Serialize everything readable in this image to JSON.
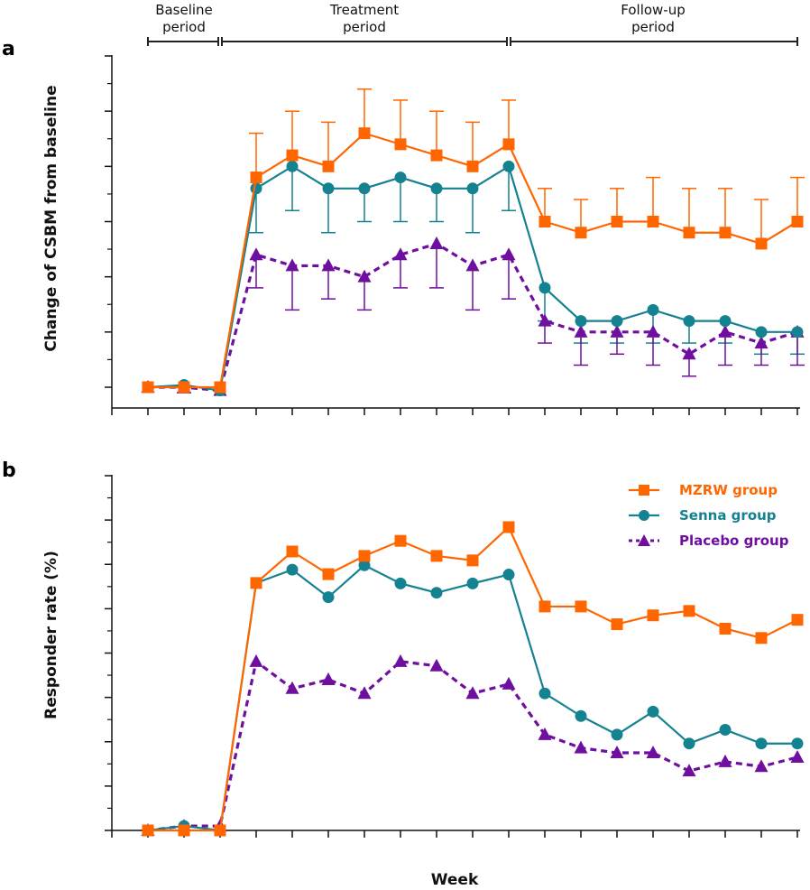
{
  "figure": {
    "periods": [
      {
        "label_line1": "Baseline",
        "label_line2": "period",
        "from_week": -2,
        "to_week": 0
      },
      {
        "label_line1": "Treatment",
        "label_line2": "period",
        "from_week": 0,
        "to_week": 8
      },
      {
        "label_line1": "Follow-up",
        "label_line2": "period",
        "from_week": 8,
        "to_week": 16
      }
    ],
    "legend": [
      {
        "name": "MZRW group",
        "color": "#ff6600",
        "marker": "square",
        "dash": "solid"
      },
      {
        "name": "Senna group",
        "color": "#148291",
        "marker": "circle",
        "dash": "solid"
      },
      {
        "name": "Placebo group",
        "color": "#6f0fa0",
        "marker": "triangle",
        "dash": "dashed"
      }
    ],
    "sig_colors": {
      "MZRW group": "#ff9a4a",
      "Senna group": "#34aac8"
    }
  },
  "chart_data": [
    {
      "panel": "a",
      "type": "line",
      "title": "",
      "xlabel": "",
      "ylabel": "Change of CSBM from  baseline",
      "x": [
        -2,
        -1,
        0,
        1,
        2,
        3,
        4,
        5,
        6,
        7,
        8,
        9,
        10,
        11,
        12,
        13,
        14,
        15,
        16
      ],
      "xlim": [
        -3,
        16
      ],
      "ylim": [
        -0.2,
        3.0
      ],
      "xticks": [
        "-3",
        "-2",
        "-1",
        "0",
        "1",
        "2",
        "3",
        "4",
        "5",
        "6",
        "7",
        "8",
        "9",
        "10",
        "11",
        "12",
        "13",
        "14",
        "15",
        "16"
      ],
      "yticks": [
        "0.0",
        "0.5",
        "1.0",
        "1.5",
        "2.0",
        "2.5",
        "3.0"
      ],
      "ytick_values": [
        0,
        0.5,
        1.0,
        1.5,
        2.0,
        2.5,
        3.0
      ],
      "grid": false,
      "series": [
        {
          "name": "MZRW group",
          "values": [
            0,
            0,
            0,
            1.9,
            2.1,
            2.0,
            2.3,
            2.2,
            2.1,
            2.0,
            2.2,
            1.5,
            1.4,
            1.5,
            1.5,
            1.4,
            1.4,
            1.3,
            1.5
          ],
          "error_upper": [
            null,
            null,
            null,
            2.3,
            2.5,
            2.4,
            2.7,
            2.6,
            2.5,
            2.4,
            2.6,
            1.8,
            1.7,
            1.8,
            1.9,
            1.8,
            1.8,
            1.7,
            1.9
          ],
          "error_lower": [
            null,
            null,
            null,
            null,
            null,
            null,
            null,
            null,
            null,
            null,
            null,
            null,
            null,
            null,
            null,
            null,
            null,
            null,
            null
          ],
          "sig_above": [
            "",
            "",
            "",
            "**",
            "**",
            "**",
            "**",
            "**",
            "**",
            "**",
            "**",
            "**",
            "**",
            "**",
            "**",
            "**",
            "**",
            "**",
            "**"
          ],
          "sig_below": [
            "",
            "",
            "",
            "",
            "",
            "",
            "",
            "",
            "",
            "",
            "",
            "",
            "",
            "",
            "",
            "",
            "",
            "",
            ""
          ]
        },
        {
          "name": "Senna group",
          "values": [
            0,
            0.02,
            -0.03,
            1.8,
            2.0,
            1.8,
            1.8,
            1.9,
            1.8,
            1.8,
            2.0,
            0.9,
            0.6,
            0.6,
            0.7,
            0.6,
            0.6,
            0.5,
            0.5
          ],
          "error_upper": [
            null,
            null,
            null,
            null,
            null,
            null,
            null,
            null,
            null,
            null,
            null,
            null,
            null,
            null,
            null,
            null,
            null,
            null,
            null
          ],
          "error_lower": [
            null,
            null,
            null,
            1.4,
            1.6,
            1.4,
            1.5,
            1.5,
            1.5,
            1.4,
            1.6,
            0.6,
            0.4,
            0.4,
            0.4,
            0.4,
            0.4,
            0.3,
            0.3
          ],
          "sig_above": [
            "",
            "",
            "",
            "",
            "",
            "",
            "",
            "",
            "",
            "",
            "",
            "",
            "",
            "",
            "",
            "",
            "",
            "",
            ""
          ],
          "sig_below": [
            "",
            "",
            "",
            "",
            "**",
            "*",
            "*",
            "",
            "",
            "*",
            "*",
            "",
            "",
            "",
            "",
            "",
            "",
            "",
            ""
          ]
        },
        {
          "name": "Placebo group",
          "values": [
            0,
            0,
            -0.03,
            1.2,
            1.1,
            1.1,
            1.0,
            1.2,
            1.3,
            1.1,
            1.2,
            0.6,
            0.5,
            0.5,
            0.5,
            0.3,
            0.5,
            0.4,
            0.5
          ],
          "error_upper": [
            null,
            null,
            null,
            null,
            null,
            null,
            null,
            null,
            null,
            null,
            null,
            null,
            null,
            null,
            null,
            null,
            null,
            null,
            null
          ],
          "error_lower": [
            null,
            -0.05,
            null,
            0.9,
            0.7,
            0.8,
            0.7,
            0.9,
            0.9,
            0.7,
            0.8,
            0.4,
            0.2,
            0.3,
            0.2,
            0.1,
            0.2,
            0.2,
            0.2
          ],
          "sig_above": [
            "",
            "",
            "",
            "",
            "",
            "",
            "",
            "",
            "",
            "",
            "",
            "",
            "",
            "",
            "",
            "",
            "",
            "",
            ""
          ],
          "sig_below": [
            "",
            "",
            "",
            "",
            "",
            "",
            "",
            "",
            "",
            "",
            "",
            "",
            "",
            "",
            "",
            "",
            "",
            "",
            ""
          ]
        }
      ]
    },
    {
      "panel": "b",
      "type": "line",
      "title": "",
      "xlabel": "Week",
      "ylabel": "Responder rate (%)",
      "x": [
        -2,
        -1,
        0,
        1,
        2,
        3,
        4,
        5,
        6,
        7,
        8,
        9,
        10,
        11,
        12,
        13,
        14,
        15,
        16
      ],
      "xlim": [
        -3,
        16
      ],
      "ylim": [
        0,
        80
      ],
      "xticks": [
        "-3",
        "-2",
        "-1",
        "0",
        "1",
        "2",
        "3",
        "4",
        "5",
        "6",
        "7",
        "8",
        "9",
        "10",
        "11",
        "12",
        "13",
        "14",
        "15",
        "16"
      ],
      "yticks": [
        "0",
        "10",
        "20",
        "30",
        "40",
        "50",
        "60",
        "70",
        "80"
      ],
      "ytick_values": [
        0,
        10,
        20,
        30,
        40,
        50,
        60,
        70,
        80
      ],
      "grid": false,
      "legend_position": "top-right",
      "series": [
        {
          "name": "MZRW group",
          "values": [
            0,
            0,
            0,
            55.8,
            62.9,
            57.8,
            61.9,
            65.3,
            61.9,
            60.9,
            68.4,
            50.5,
            50.5,
            46.5,
            48.5,
            49.5,
            45.5,
            43.4,
            47.5
          ],
          "sig_above": [
            "",
            "",
            "",
            "*",
            "**",
            "**",
            "**",
            "**",
            "**",
            "**",
            "**",
            "**",
            "**",
            "**",
            "**",
            "**",
            "**",
            "**",
            "**"
          ],
          "sig_below": [
            "",
            "",
            "",
            "",
            "",
            "",
            "",
            "",
            "",
            "",
            "",
            "",
            "",
            "",
            "",
            "",
            "",
            "",
            ""
          ]
        },
        {
          "name": "Senna group",
          "values": [
            0,
            1.0,
            0,
            55.8,
            58.8,
            52.6,
            59.8,
            55.7,
            53.6,
            55.7,
            57.7,
            30.9,
            25.8,
            21.6,
            26.8,
            19.6,
            22.7,
            19.6,
            19.6
          ],
          "sig_above": [
            "",
            "",
            "",
            "",
            "",
            "",
            "",
            "",
            "",
            "",
            "",
            "",
            "",
            "",
            "",
            "",
            "",
            "",
            ""
          ],
          "sig_below": [
            "",
            "",
            "",
            "*",
            "**",
            "*",
            "**",
            "*",
            "*",
            "**",
            "**",
            "",
            "",
            "",
            "",
            "",
            "",
            "",
            ""
          ]
        },
        {
          "name": "Placebo group",
          "values": [
            0,
            1.0,
            1.0,
            38.1,
            32.0,
            34.0,
            30.9,
            38.1,
            37.1,
            30.9,
            33.0,
            21.6,
            18.6,
            17.5,
            17.5,
            13.4,
            15.5,
            14.4,
            16.5
          ],
          "sig_above": [
            "",
            "",
            "",
            "",
            "",
            "",
            "",
            "",
            "",
            "",
            "",
            "",
            "",
            "",
            "",
            "",
            "",
            "",
            ""
          ],
          "sig_below": [
            "",
            "",
            "",
            "",
            "",
            "",
            "",
            "",
            "",
            "",
            "",
            "",
            "",
            "",
            "",
            "",
            "",
            "",
            ""
          ]
        }
      ]
    }
  ],
  "labels": {
    "panel_a": "a",
    "panel_b": "b"
  }
}
